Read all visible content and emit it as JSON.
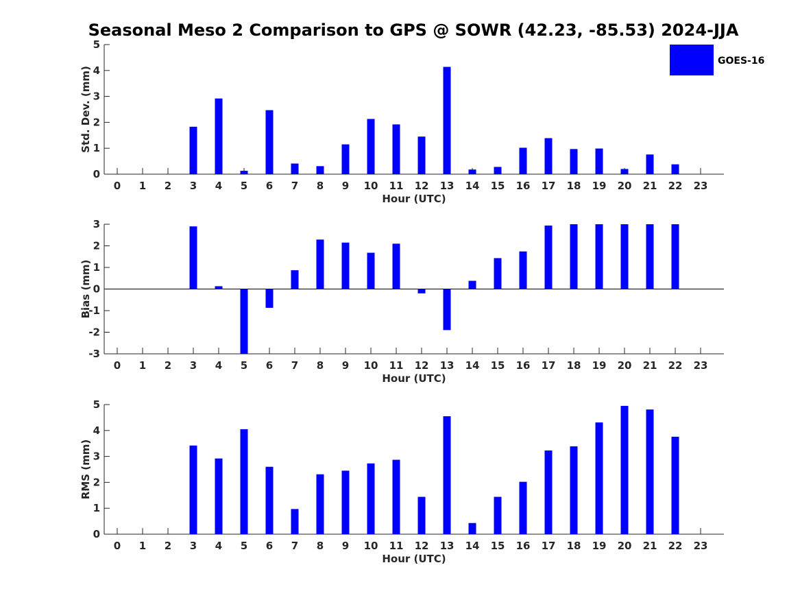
{
  "title": "Seasonal Meso 2 Comparison to GPS @ SOWR (42.23, -85.53) 2024-JJA",
  "legend": {
    "label": "GOES-16",
    "color": "#0000ff",
    "placement": "top-right"
  },
  "colors": {
    "bar": "#0000ff",
    "axis": "#262626"
  },
  "chart_data": [
    {
      "type": "bar",
      "title": "",
      "xlabel": "Hour (UTC)",
      "ylabel": "Std. Dev. (mm)",
      "ylim": [
        0,
        5
      ],
      "yticks": [
        0,
        1,
        2,
        3,
        4,
        5
      ],
      "categories": [
        "0",
        "1",
        "2",
        "3",
        "4",
        "5",
        "6",
        "7",
        "8",
        "9",
        "10",
        "11",
        "12",
        "13",
        "14",
        "15",
        "16",
        "17",
        "18",
        "19",
        "20",
        "21",
        "22",
        "23"
      ],
      "series": [
        {
          "name": "GOES-16",
          "values": [
            null,
            null,
            null,
            1.83,
            2.92,
            0.13,
            2.47,
            0.41,
            0.31,
            1.15,
            2.13,
            1.92,
            1.45,
            4.14,
            0.18,
            0.28,
            1.02,
            1.39,
            0.97,
            0.99,
            0.2,
            0.76,
            0.38,
            null
          ]
        }
      ]
    },
    {
      "type": "bar",
      "title": "",
      "xlabel": "Hour (UTC)",
      "ylabel": "Bias (mm)",
      "ylim": [
        -3,
        3
      ],
      "yticks": [
        -3,
        -2,
        -1,
        0,
        1,
        2,
        3
      ],
      "categories": [
        "0",
        "1",
        "2",
        "3",
        "4",
        "5",
        "6",
        "7",
        "8",
        "9",
        "10",
        "11",
        "12",
        "13",
        "14",
        "15",
        "16",
        "17",
        "18",
        "19",
        "20",
        "21",
        "22",
        "23"
      ],
      "series": [
        {
          "name": "GOES-16",
          "values": [
            null,
            null,
            null,
            2.9,
            0.13,
            -3.0,
            -0.87,
            0.87,
            2.29,
            2.15,
            1.68,
            2.1,
            -0.2,
            -1.9,
            0.38,
            1.43,
            1.74,
            2.94,
            3.0,
            3.0,
            3.0,
            3.0,
            3.0,
            null
          ]
        }
      ]
    },
    {
      "type": "bar",
      "title": "",
      "xlabel": "Hour (UTC)",
      "ylabel": "RMS (mm)",
      "ylim": [
        0,
        5
      ],
      "yticks": [
        0,
        1,
        2,
        3,
        4,
        5
      ],
      "categories": [
        "0",
        "1",
        "2",
        "3",
        "4",
        "5",
        "6",
        "7",
        "8",
        "9",
        "10",
        "11",
        "12",
        "13",
        "14",
        "15",
        "16",
        "17",
        "18",
        "19",
        "20",
        "21",
        "22",
        "23"
      ],
      "series": [
        {
          "name": "GOES-16",
          "values": [
            null,
            null,
            null,
            3.42,
            2.92,
            4.05,
            2.6,
            0.97,
            2.31,
            2.45,
            2.73,
            2.87,
            1.44,
            4.55,
            0.43,
            1.44,
            2.02,
            3.23,
            3.39,
            4.31,
            4.95,
            4.81,
            3.76,
            null
          ]
        }
      ]
    }
  ]
}
